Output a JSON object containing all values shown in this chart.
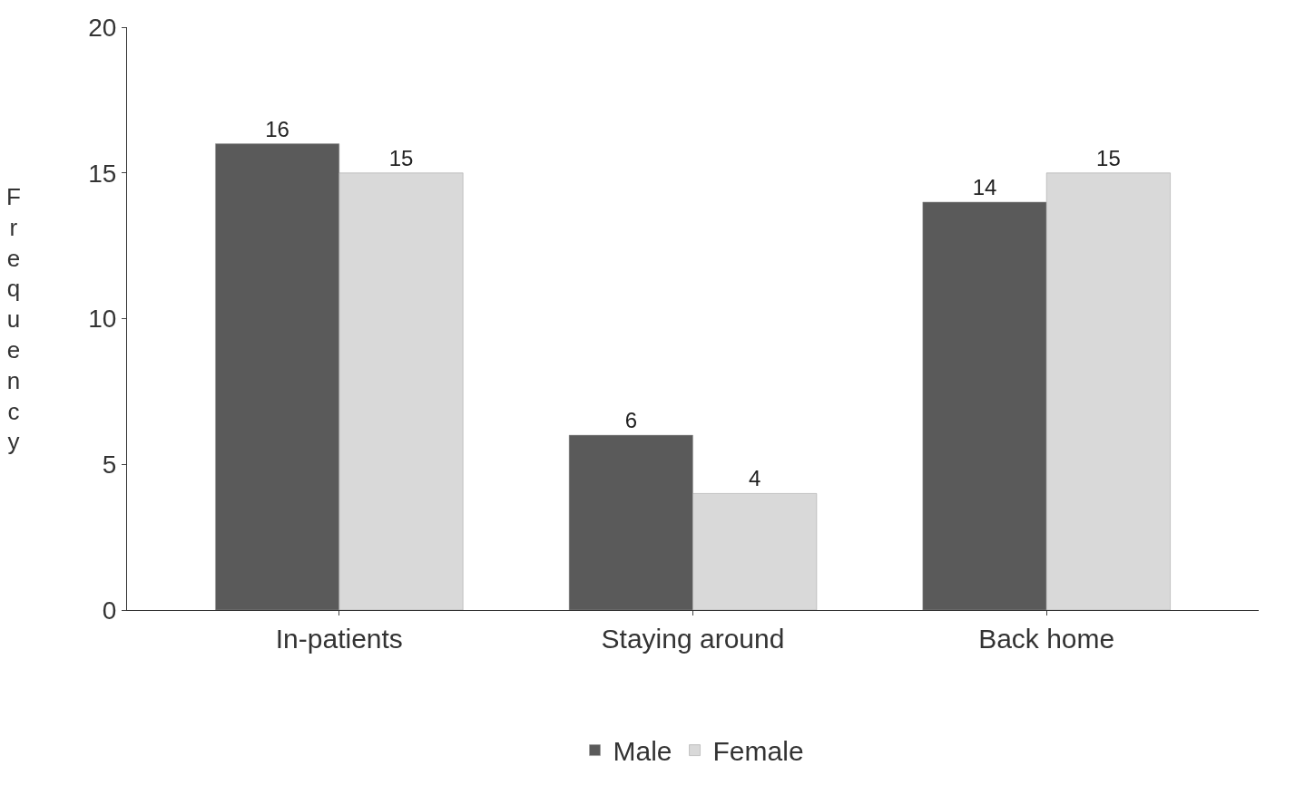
{
  "chart_data": {
    "type": "bar",
    "ylabel": "Frequency",
    "categories": [
      "In-patients",
      "Staying around",
      "Back home"
    ],
    "series": [
      {
        "name": "Male",
        "color": "#5a5a5a",
        "values": [
          16,
          6,
          14
        ]
      },
      {
        "name": "Female",
        "color": "#d9d9d9",
        "values": [
          15,
          4,
          15
        ]
      }
    ],
    "ylim": [
      0,
      20
    ],
    "yticks": [
      0,
      5,
      10,
      15,
      20
    ],
    "legend": "bottom",
    "data_labels": true
  }
}
